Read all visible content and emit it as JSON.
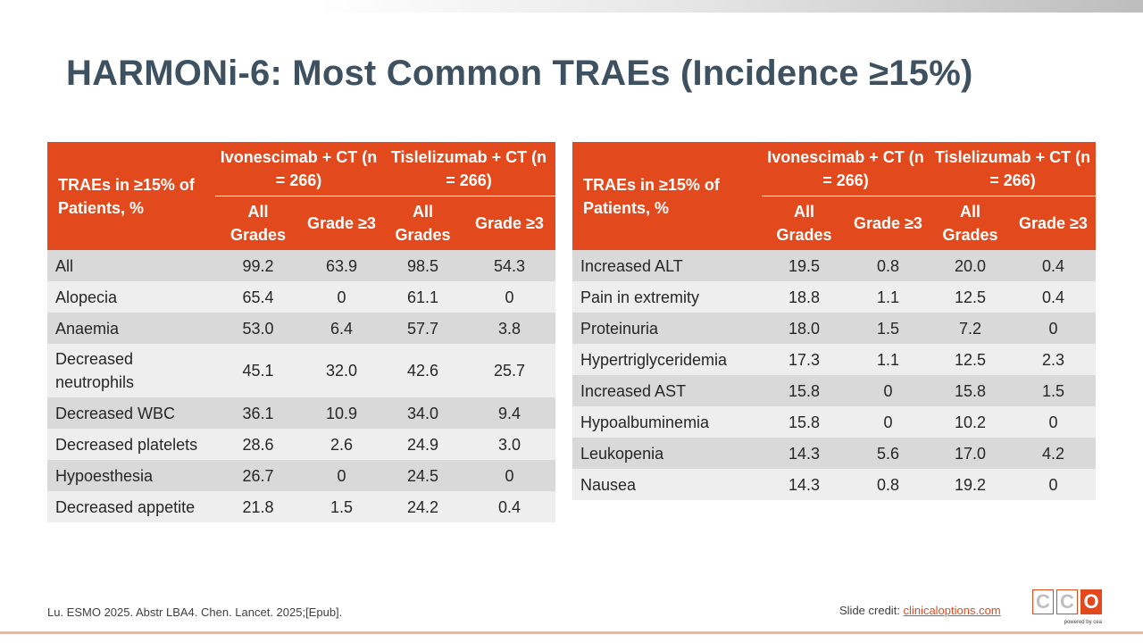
{
  "slide": {
    "title": "HARMONi-6: Most Common TRAEs (Incidence ≥15%)",
    "citation": "Lu. ESMO 2025. Abstr LBA4. Chen. Lancet. 2025;[Epub].",
    "credit_label": "Slide credit:",
    "credit_link": "clinicaloptions.com",
    "logo_letters": [
      "C",
      "C",
      "O"
    ],
    "logo_powered": "powered by cea",
    "colors": {
      "header": "#e24a1d",
      "title": "#3e5160",
      "row_dark": "#d9d9d9",
      "row_light": "#eeeeee"
    }
  },
  "headers": {
    "row_label": "TRAEs in ≥15% of Patients, %",
    "group1": "Ivonescimab + CT (n = 266)",
    "group2": "Tislelizumab + CT (n = 266)",
    "all_grades": "All Grades",
    "grade3": "Grade ≥3"
  },
  "left_table": [
    {
      "name": "All",
      "a": "99.2",
      "b": "63.9",
      "c": "98.5",
      "d": "54.3"
    },
    {
      "name": "Alopecia",
      "a": "65.4",
      "b": "0",
      "c": "61.1",
      "d": "0"
    },
    {
      "name": "Anaemia",
      "a": "53.0",
      "b": "6.4",
      "c": "57.7",
      "d": "3.8"
    },
    {
      "name": "Decreased neutrophils",
      "a": "45.1",
      "b": "32.0",
      "c": "42.6",
      "d": "25.7"
    },
    {
      "name": "Decreased WBC",
      "a": "36.1",
      "b": "10.9",
      "c": "34.0",
      "d": "9.4"
    },
    {
      "name": "Decreased platelets",
      "a": "28.6",
      "b": "2.6",
      "c": "24.9",
      "d": "3.0"
    },
    {
      "name": "Hypoesthesia",
      "a": "26.7",
      "b": "0",
      "c": "24.5",
      "d": "0"
    },
    {
      "name": "Decreased appetite",
      "a": "21.8",
      "b": "1.5",
      "c": "24.2",
      "d": "0.4"
    }
  ],
  "right_table": [
    {
      "name": "Increased ALT",
      "a": "19.5",
      "b": "0.8",
      "c": "20.0",
      "d": "0.4"
    },
    {
      "name": "Pain in extremity",
      "a": "18.8",
      "b": "1.1",
      "c": "12.5",
      "d": "0.4"
    },
    {
      "name": "Proteinuria",
      "a": "18.0",
      "b": "1.5",
      "c": "7.2",
      "d": "0"
    },
    {
      "name": "Hypertriglyceridemia",
      "a": "17.3",
      "b": "1.1",
      "c": "12.5",
      "d": "2.3"
    },
    {
      "name": "Increased AST",
      "a": "15.8",
      "b": "0",
      "c": "15.8",
      "d": "1.5"
    },
    {
      "name": "Hypoalbuminemia",
      "a": "15.8",
      "b": "0",
      "c": "10.2",
      "d": "0"
    },
    {
      "name": "Leukopenia",
      "a": "14.3",
      "b": "5.6",
      "c": "17.0",
      "d": "4.2"
    },
    {
      "name": "Nausea",
      "a": "14.3",
      "b": "0.8",
      "c": "19.2",
      "d": "0"
    }
  ]
}
